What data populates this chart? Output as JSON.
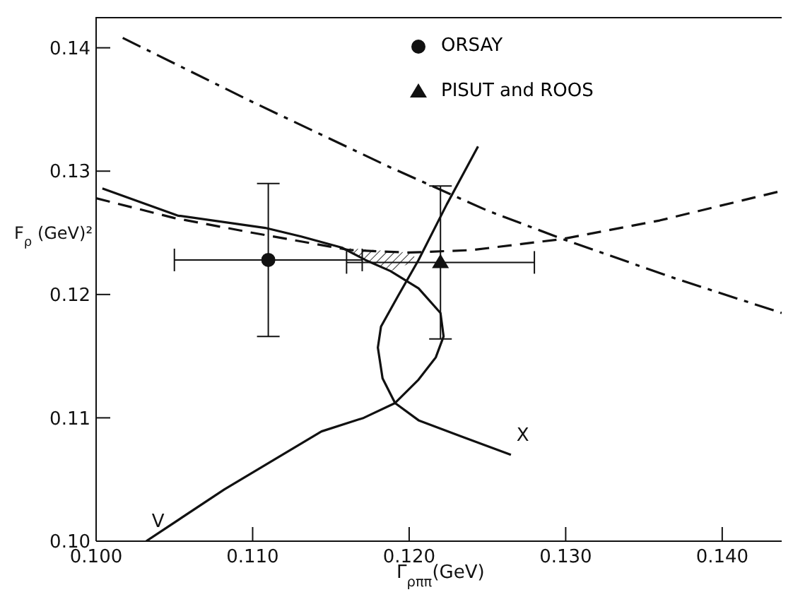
{
  "chart_data": {
    "type": "line",
    "xlabel": "Γ$_{ρππ}$(GeV)",
    "ylabel": "F$_{ρ}$ (GeV)²",
    "xlim": [
      0.1,
      0.1438
    ],
    "ylim": [
      0.1,
      0.1425
    ],
    "xticks": [
      {
        "value": 0.1,
        "label": "0.100"
      },
      {
        "value": 0.11,
        "label": "0.110"
      },
      {
        "value": 0.12,
        "label": "0.120"
      },
      {
        "value": 0.13,
        "label": "0.130"
      },
      {
        "value": 0.14,
        "label": "0.140"
      }
    ],
    "yticks": [
      {
        "value": 0.1,
        "label": "0.10"
      },
      {
        "value": 0.11,
        "label": "0.11"
      },
      {
        "value": 0.12,
        "label": "0.12"
      },
      {
        "value": 0.13,
        "label": "0.13"
      },
      {
        "value": 0.14,
        "label": "0.14"
      }
    ],
    "grid": false,
    "legend": "top",
    "marker": "none",
    "series": [
      {
        "name": "V",
        "type": "line",
        "color": "#111111",
        "line_style": "solid",
        "x": [
          0.1032,
          0.1082,
          0.1144,
          0.1171,
          0.1191,
          0.1206,
          0.1217,
          0.1222,
          0.122,
          0.1206,
          0.1188,
          0.1172,
          0.1157,
          0.1131,
          0.1108,
          0.1052,
          0.1004
        ],
        "values": [
          0.1,
          0.1042,
          0.1089,
          0.11,
          0.1112,
          0.1131,
          0.1149,
          0.1166,
          0.1185,
          0.1205,
          0.1219,
          0.1228,
          0.1238,
          0.1247,
          0.1254,
          0.1264,
          0.1286
        ]
      },
      {
        "name": "X",
        "type": "line",
        "color": "#111111",
        "line_style": "solid",
        "x": [
          0.1265,
          0.1233,
          0.1206,
          0.1191,
          0.1183,
          0.118,
          0.1182,
          0.1193,
          0.1206,
          0.1224,
          0.1244
        ],
        "values": [
          0.107,
          0.1085,
          0.1098,
          0.1112,
          0.1132,
          0.1157,
          0.1174,
          0.1199,
          0.1228,
          0.1273,
          0.132
        ]
      },
      {
        "type": "line",
        "color": "#111111",
        "line_style": "dashed",
        "x": [
          0.1,
          0.105,
          0.11,
          0.1162,
          0.12,
          0.124,
          0.1298,
          0.136,
          0.1438
        ],
        "values": [
          0.1278,
          0.1262,
          0.125,
          0.1236,
          0.1234,
          0.1236,
          0.1245,
          0.126,
          0.1284
        ]
      },
      {
        "type": "line",
        "color": "#111111",
        "line_style": "dashdot",
        "x": [
          0.1017,
          0.11,
          0.1188,
          0.125,
          0.1298,
          0.137,
          0.1438
        ],
        "values": [
          0.1408,
          0.1356,
          0.1303,
          0.1268,
          0.1245,
          0.1213,
          0.1185
        ]
      },
      {
        "name": "ORSAY",
        "type": "scatter",
        "color": "#111111",
        "marker": "circle",
        "x": [
          0.111
        ],
        "values": [
          0.1228
        ],
        "errors": [
          0.0062
        ],
        "xerrors": [
          0.006
        ]
      },
      {
        "name": "PISUT and ROOS",
        "type": "scatter",
        "color": "#111111",
        "marker": "triangle",
        "x": [
          0.122
        ],
        "values": [
          0.1226
        ],
        "errors": [
          0.0062
        ],
        "xerrors": [
          0.006
        ]
      }
    ]
  }
}
